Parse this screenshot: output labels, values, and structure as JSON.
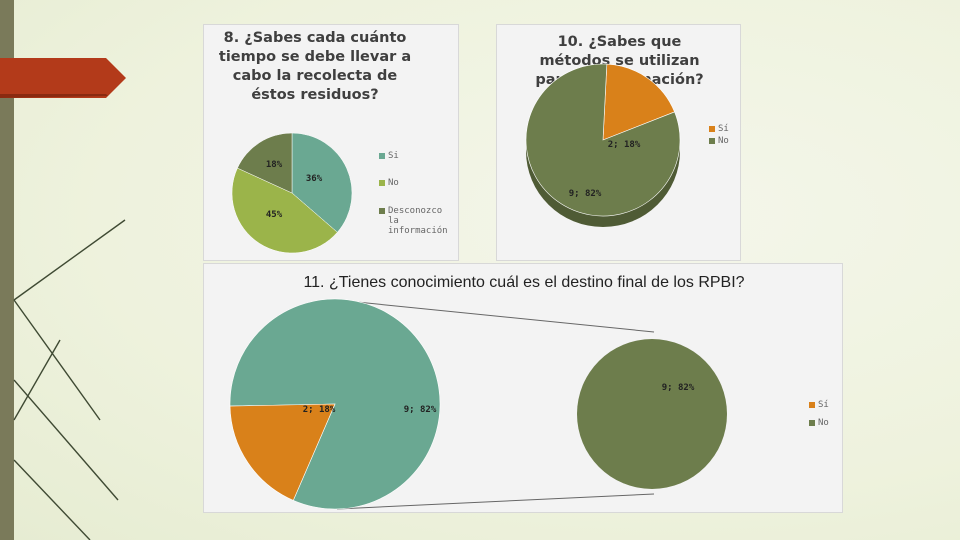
{
  "colors": {
    "teal": "#6aa892",
    "olive_light": "#9bb44a",
    "olive_dark": "#6d7d4c",
    "orange": "#d9811a",
    "panel_bg": "#f3f3f3",
    "arrow_red": "#b33a1a"
  },
  "chart_data": [
    {
      "type": "pie",
      "title": "8. ¿Sabes cada cuánto tiempo se debe llevar a cabo la recolecta de éstos residuos?",
      "categories": [
        "Si",
        "No",
        "Desconozco la información"
      ],
      "values": [
        36,
        45,
        18
      ],
      "labels": [
        "36%",
        "45%",
        "18%"
      ],
      "legend": "right"
    },
    {
      "type": "pie",
      "title": "10. ¿Sabes que métodos se utilizan para su eliminación?",
      "categories": [
        "Sí",
        "No"
      ],
      "values": [
        2,
        9
      ],
      "labels": [
        "2; 18%",
        "9; 82%"
      ],
      "legend": "top-right"
    },
    {
      "type": "pie",
      "title": "11. ¿Tienes conocimiento cuál es el destino final de los RPBI?",
      "categories": [
        "Sí",
        "No"
      ],
      "values": [
        2,
        9
      ],
      "labels": [
        "2; 18%",
        "9; 82%"
      ],
      "secondary_label": "9; 82%",
      "legend": "right"
    }
  ]
}
